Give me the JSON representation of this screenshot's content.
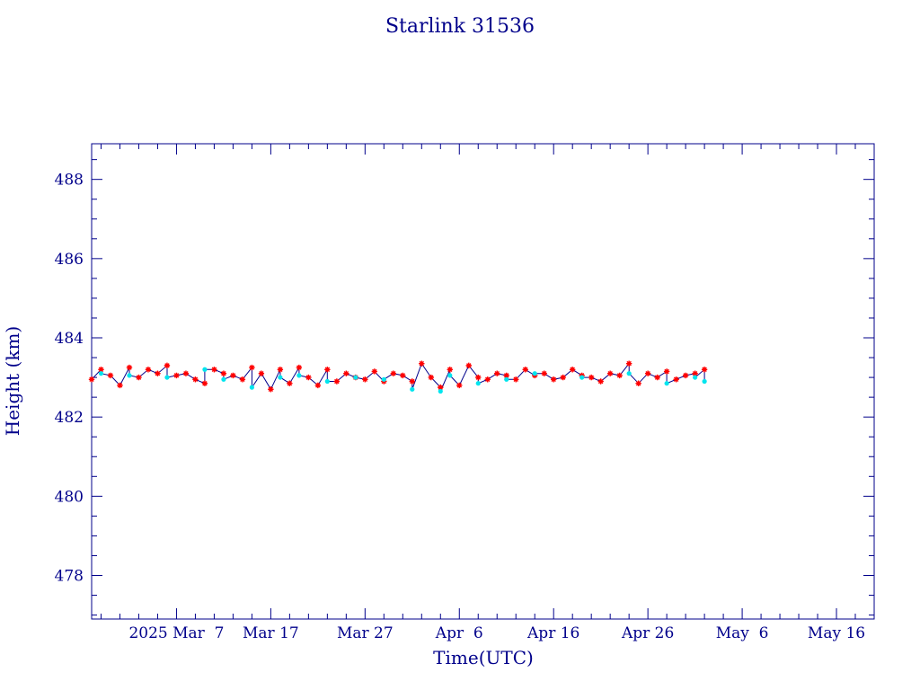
{
  "chart_data": {
    "type": "scatter",
    "title": "Starlink 31536",
    "xlabel": "Time(UTC)",
    "ylabel": "Height (km)",
    "xlim": [
      "2025-02-26",
      "2025-05-20"
    ],
    "ylim": [
      476.9,
      488.9
    ],
    "y_ticks": [
      478,
      480,
      482,
      484,
      486,
      488
    ],
    "x_ticks": [
      {
        "date": "2025-03-07",
        "label": "2025 Mar  7"
      },
      {
        "date": "2025-03-17",
        "label": "Mar 17"
      },
      {
        "date": "2025-03-27",
        "label": "Mar 27"
      },
      {
        "date": "2025-04-06",
        "label": "Apr  6"
      },
      {
        "date": "2025-04-16",
        "label": "Apr 16"
      },
      {
        "date": "2025-04-26",
        "label": "Apr 26"
      },
      {
        "date": "2025-05-06",
        "label": "May  6"
      },
      {
        "date": "2025-05-16",
        "label": "May 16"
      }
    ],
    "grid": false,
    "colors": {
      "axis": "#00008b",
      "line": "#00008b",
      "marker_a": "#ff0000",
      "marker_b": "#00e5ee"
    },
    "series": [
      {
        "marker": "asterisk",
        "color": "#ff0000",
        "x": [
          "2025-02-26",
          "2025-02-27",
          "2025-02-28",
          "2025-03-01",
          "2025-03-02",
          "2025-03-03",
          "2025-03-04",
          "2025-03-05",
          "2025-03-06",
          "2025-03-07",
          "2025-03-08",
          "2025-03-09",
          "2025-03-10",
          "2025-03-11",
          "2025-03-12",
          "2025-03-13",
          "2025-03-14",
          "2025-03-15",
          "2025-03-16",
          "2025-03-17",
          "2025-03-18",
          "2025-03-19",
          "2025-03-20",
          "2025-03-21",
          "2025-03-22",
          "2025-03-23",
          "2025-03-24",
          "2025-03-25",
          "2025-03-26",
          "2025-03-27",
          "2025-03-28",
          "2025-03-29",
          "2025-03-30",
          "2025-03-31",
          "2025-04-01",
          "2025-04-02",
          "2025-04-03",
          "2025-04-04",
          "2025-04-05",
          "2025-04-06",
          "2025-04-07",
          "2025-04-08",
          "2025-04-09",
          "2025-04-10",
          "2025-04-11",
          "2025-04-12",
          "2025-04-13",
          "2025-04-14",
          "2025-04-15",
          "2025-04-16",
          "2025-04-17",
          "2025-04-18",
          "2025-04-19",
          "2025-04-20",
          "2025-04-21",
          "2025-04-22",
          "2025-04-23",
          "2025-04-24",
          "2025-04-25",
          "2025-04-26",
          "2025-04-27",
          "2025-04-28",
          "2025-04-29",
          "2025-04-30",
          "2025-05-01",
          "2025-05-02"
        ],
        "y": [
          482.95,
          483.2,
          483.05,
          482.8,
          483.25,
          483.0,
          483.2,
          483.1,
          483.3,
          483.05,
          483.1,
          482.95,
          482.85,
          483.2,
          483.1,
          483.05,
          482.95,
          483.25,
          483.1,
          482.7,
          483.2,
          482.85,
          483.25,
          483.0,
          482.8,
          483.2,
          482.9,
          483.1,
          483.0,
          482.95,
          483.15,
          482.9,
          483.1,
          483.05,
          482.9,
          483.35,
          483.0,
          482.75,
          483.2,
          482.8,
          483.3,
          483.0,
          482.95,
          483.1,
          483.05,
          482.95,
          483.2,
          483.05,
          483.1,
          482.95,
          483.0,
          483.2,
          483.05,
          483.0,
          482.9,
          483.1,
          483.05,
          483.35,
          482.85,
          483.1,
          483.0,
          483.15,
          482.95,
          483.05,
          483.1,
          483.2
        ]
      },
      {
        "marker": "dot",
        "color": "#00e5ee",
        "x": [
          "2025-02-27",
          "2025-03-02",
          "2025-03-06",
          "2025-03-10",
          "2025-03-12",
          "2025-03-15",
          "2025-03-18",
          "2025-03-20",
          "2025-03-23",
          "2025-03-26",
          "2025-03-29",
          "2025-04-01",
          "2025-04-04",
          "2025-04-05",
          "2025-04-08",
          "2025-04-11",
          "2025-04-14",
          "2025-04-19",
          "2025-04-24",
          "2025-04-28",
          "2025-05-01",
          "2025-05-02"
        ],
        "y": [
          483.1,
          483.05,
          483.0,
          483.2,
          482.95,
          482.75,
          483.0,
          483.05,
          482.9,
          483.0,
          482.95,
          482.7,
          482.65,
          483.05,
          482.85,
          482.95,
          483.1,
          483.0,
          483.1,
          482.85,
          483.0,
          482.9
        ]
      }
    ]
  }
}
